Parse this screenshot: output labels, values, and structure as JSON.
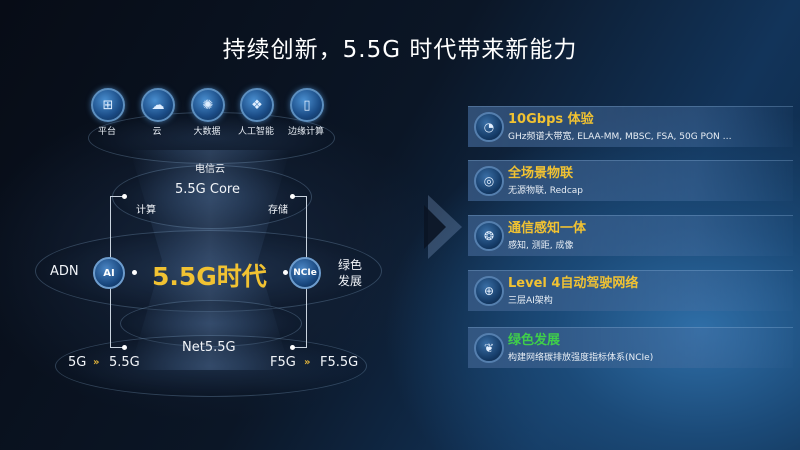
{
  "title": "持续创新，5.5G 时代带来新能力",
  "top_icons": [
    {
      "label": "平台",
      "icon": "platform-icon",
      "glyph": "⊞"
    },
    {
      "label": "云",
      "icon": "cloud-icon",
      "glyph": "☁"
    },
    {
      "label": "大数据",
      "icon": "big-data-icon",
      "glyph": "✺"
    },
    {
      "label": "人工智能",
      "icon": "ai-chip-icon",
      "glyph": "❖"
    },
    {
      "label": "边缘计算",
      "icon": "edge-computing-icon",
      "glyph": "▯"
    }
  ],
  "diagram": {
    "telecom_cloud": "电信云",
    "core": "5.5G Core",
    "compute": "计算",
    "storage": "存储",
    "center": "5.5G时代",
    "adn": "ADN",
    "ai_badge": "AI",
    "ncie_badge": "NCIe",
    "green_line1": "绿色",
    "green_line2": "发展",
    "net": "Net5.5G",
    "left_from": "5G",
    "left_to": "5.5G",
    "right_from": "F5G",
    "right_to": "F5.5G",
    "chevron": "»"
  },
  "features": [
    {
      "title": "10Gbps 体验",
      "desc": "GHz频谱大带宽, ELAA-MM, MBSC, FSA, 50G PON …",
      "icon": "speed-gauge-icon",
      "glyph": "◔",
      "color": "#f1c232"
    },
    {
      "title": "全场景物联",
      "desc": "无源物联, Redcap",
      "icon": "iot-globe-icon",
      "glyph": "◎",
      "color": "#f1c232"
    },
    {
      "title": "通信感知一体",
      "desc": "感知, 测距, 成像",
      "icon": "sensing-icon",
      "glyph": "❂",
      "color": "#f1c232"
    },
    {
      "title": "Level 4自动驾驶网络",
      "desc": "三层AI架构",
      "icon": "network-globe-icon",
      "glyph": "⊕",
      "color": "#f1c232"
    },
    {
      "title": "绿色发展",
      "desc": "构建网络碳排放强度指标体系(NCIe)",
      "icon": "leaf-icon",
      "glyph": "❦",
      "color": "#3fce4a"
    }
  ],
  "colors": {
    "accent_yellow": "#f1c232",
    "green": "#3fce4a"
  }
}
